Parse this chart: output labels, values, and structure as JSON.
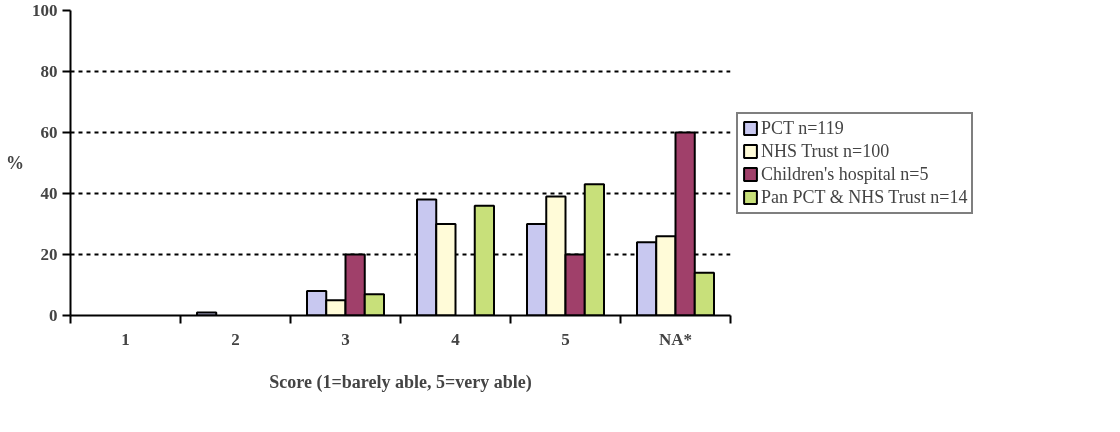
{
  "chart_data": {
    "type": "bar",
    "xlabel": "Score (1=barely able, 5=very able)",
    "ylabel": "%",
    "categories": [
      "1",
      "2",
      "3",
      "4",
      "5",
      "NA*"
    ],
    "series": [
      {
        "name": "PCT n=119",
        "color": "#c8c8f0",
        "values": [
          null,
          1,
          8,
          38,
          30,
          24
        ]
      },
      {
        "name": "NHS Trust n=100",
        "color": "#fffbd8",
        "values": [
          null,
          null,
          5,
          30,
          39,
          26
        ]
      },
      {
        "name": "Children's hospital n=5",
        "color": "#a0406a",
        "values": [
          null,
          null,
          20,
          null,
          20,
          60
        ]
      },
      {
        "name": "Pan PCT & NHS Trust n=14",
        "color": "#c8e07a",
        "values": [
          null,
          null,
          7,
          36,
          43,
          14
        ]
      }
    ],
    "ylim": [
      0,
      100
    ],
    "yticks": [
      0,
      20,
      40,
      60,
      80,
      100
    ],
    "grid": "y",
    "legend": "right"
  }
}
